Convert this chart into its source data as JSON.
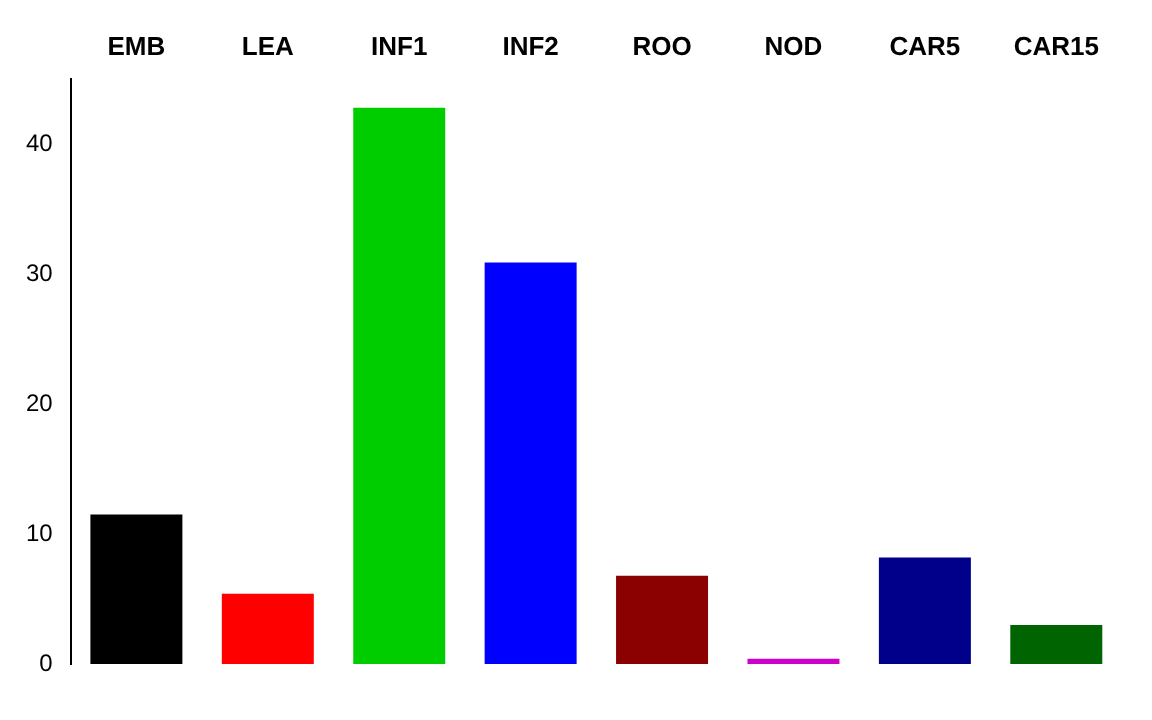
{
  "chart_data": {
    "type": "bar",
    "categories": [
      "EMB",
      "LEA",
      "INF1",
      "INF2",
      "ROO",
      "NOD",
      "CAR5",
      "CAR15"
    ],
    "values": [
      11.5,
      5.4,
      42.8,
      30.9,
      6.8,
      0.4,
      8.2,
      3.0
    ],
    "colors": [
      "#000000",
      "#ff0000",
      "#00cd00",
      "#0000ff",
      "#8b0000",
      "#cd00cd",
      "#00008b",
      "#006400"
    ],
    "ylim": [
      0,
      45
    ],
    "yticks": [
      0,
      10,
      20,
      30,
      40
    ],
    "grid": false,
    "legend": false
  }
}
